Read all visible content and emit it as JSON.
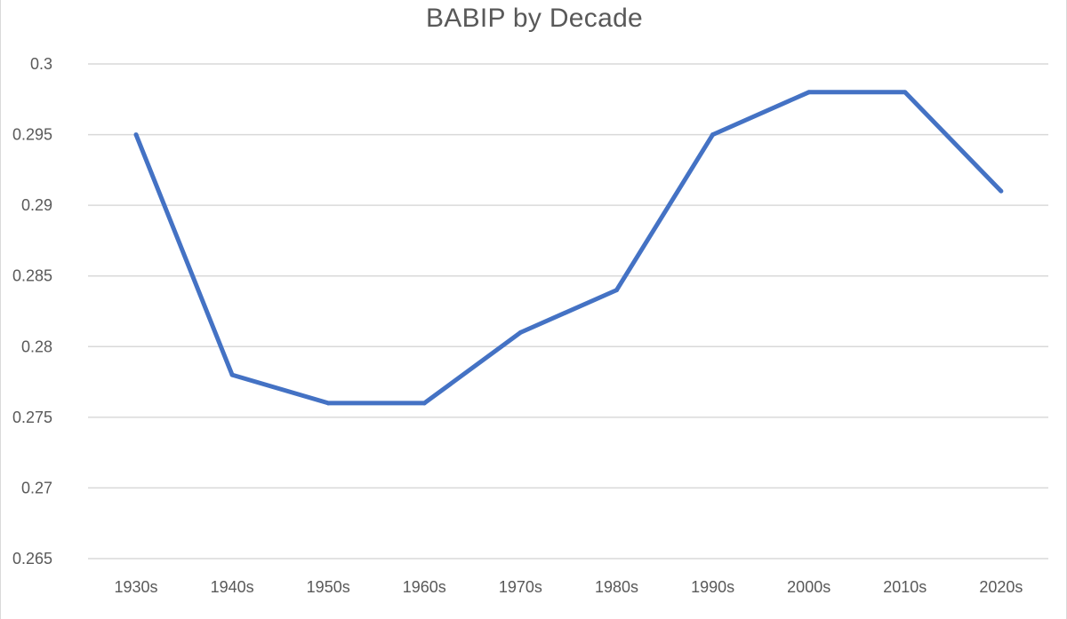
{
  "chart_data": {
    "type": "line",
    "title": "BABIP by Decade",
    "xlabel": "",
    "ylabel": "",
    "categories": [
      "1930s",
      "1940s",
      "1950s",
      "1960s",
      "1970s",
      "1980s",
      "1990s",
      "2000s",
      "2010s",
      "2020s"
    ],
    "series": [
      {
        "values": [
          0.295,
          0.278,
          0.276,
          0.276,
          0.281,
          0.284,
          0.295,
          0.298,
          0.298,
          0.291
        ],
        "color": "#4472c4"
      }
    ],
    "ylim": [
      0.265,
      0.3
    ],
    "yticks": [
      "0.265",
      "0.27",
      "0.275",
      "0.28",
      "0.285",
      "0.29",
      "0.295",
      "0.3"
    ],
    "grid": true,
    "legend": "none"
  }
}
